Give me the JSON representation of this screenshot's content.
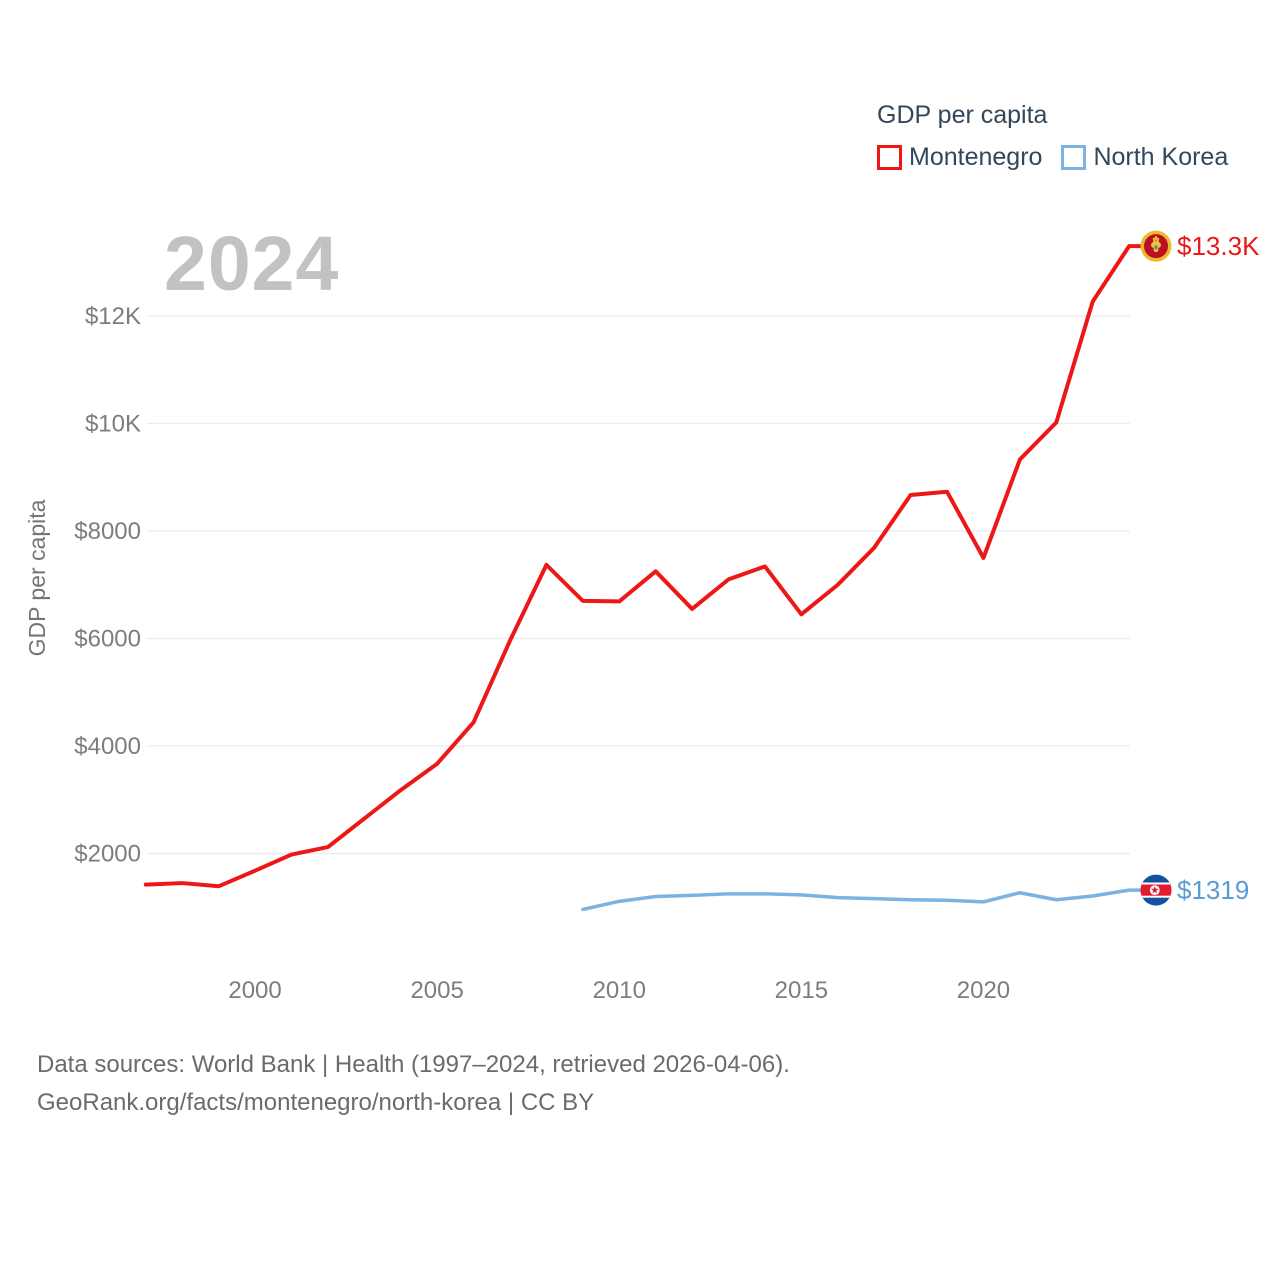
{
  "legend": {
    "title": "GDP per capita",
    "items": [
      {
        "label": "Montenegro",
        "color": "#ed1717"
      },
      {
        "label": "North Korea",
        "color": "#7db3e0"
      }
    ]
  },
  "watermark": "2024",
  "chart_data": {
    "type": "line",
    "title": "GDP per capita",
    "ylabel": "GDP per capita",
    "xlabel": "",
    "grid": true,
    "legend_position": "top-right",
    "xlim": [
      1997,
      2024
    ],
    "ylim": [
      0,
      13900
    ],
    "x_tick_years": [
      2000,
      2005,
      2010,
      2015,
      2020
    ],
    "y_ticks": [
      {
        "value": 2000,
        "label": "$2000"
      },
      {
        "value": 4000,
        "label": "$4000"
      },
      {
        "value": 6000,
        "label": "$6000"
      },
      {
        "value": 8000,
        "label": "$8000"
      },
      {
        "value": 10000,
        "label": "$10K"
      },
      {
        "value": 12000,
        "label": "$12K"
      }
    ],
    "series": [
      {
        "name": "Montenegro",
        "color": "#ed1717",
        "label_color": "#ed1717",
        "end_label": "$13.3K",
        "flag_icon": "montenegro-flag-icon",
        "years": [
          1997,
          1998,
          1999,
          2000,
          2001,
          2002,
          2003,
          2004,
          2005,
          2006,
          2007,
          2008,
          2009,
          2010,
          2011,
          2012,
          2013,
          2014,
          2015,
          2016,
          2017,
          2018,
          2019,
          2020,
          2021,
          2022,
          2023,
          2024
        ],
        "values": [
          1420,
          1450,
          1390,
          1680,
          1980,
          2120,
          2650,
          3180,
          3670,
          4440,
          5960,
          7370,
          6700,
          6690,
          7250,
          6550,
          7100,
          7340,
          6450,
          7000,
          7690,
          8670,
          8730,
          7500,
          9330,
          10020,
          12270,
          13300
        ]
      },
      {
        "name": "North Korea",
        "color": "#7ab2e2",
        "label_color": "#5b9bd5",
        "end_label": "$1319",
        "flag_icon": "north-korea-flag-icon",
        "years": [
          2009,
          2010,
          2011,
          2012,
          2013,
          2014,
          2015,
          2016,
          2017,
          2018,
          2019,
          2020,
          2021,
          2022,
          2023,
          2024
        ],
        "values": [
          960,
          1110,
          1200,
          1220,
          1250,
          1250,
          1230,
          1180,
          1160,
          1140,
          1130,
          1100,
          1270,
          1140,
          1210,
          1319
        ]
      }
    ]
  },
  "footer": {
    "line1": "Data sources: World Bank | Health (1997–2024, retrieved 2026-04-06).",
    "line2": "GeoRank.org/facts/montenegro/north-korea | CC BY"
  }
}
